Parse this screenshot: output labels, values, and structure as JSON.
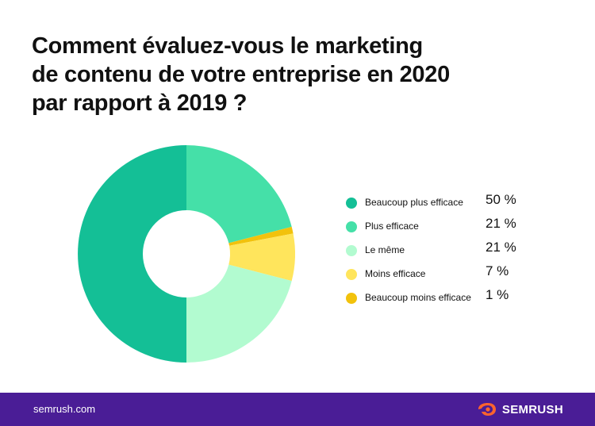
{
  "title_lines": [
    "Comment évaluez-vous le marketing",
    "de contenu de votre entreprise en 2020",
    "par rapport à 2019 ?"
  ],
  "chart_data": {
    "type": "pie",
    "donut": true,
    "legend_position": "right",
    "categories": [
      "Beaucoup plus efficace",
      "Plus efficace",
      "Le même",
      "Moins efficace",
      "Beaucoup moins efficace"
    ],
    "values": [
      50,
      21,
      21,
      7,
      1
    ],
    "value_labels": [
      "50 %",
      "21 %",
      "21 %",
      "7 %",
      "1 %"
    ],
    "colors": [
      "#14bf96",
      "#45e0a8",
      "#b2fbd0",
      "#ffe55c",
      "#f2c20c"
    ],
    "slice_order_clockwise_from_top": [
      1,
      4,
      3,
      2,
      0
    ]
  },
  "footer": {
    "url": "semrush.com",
    "brand": "SEMRUSH",
    "logo_icon": "semrush-fire-icon",
    "background": "#4a1d96"
  }
}
